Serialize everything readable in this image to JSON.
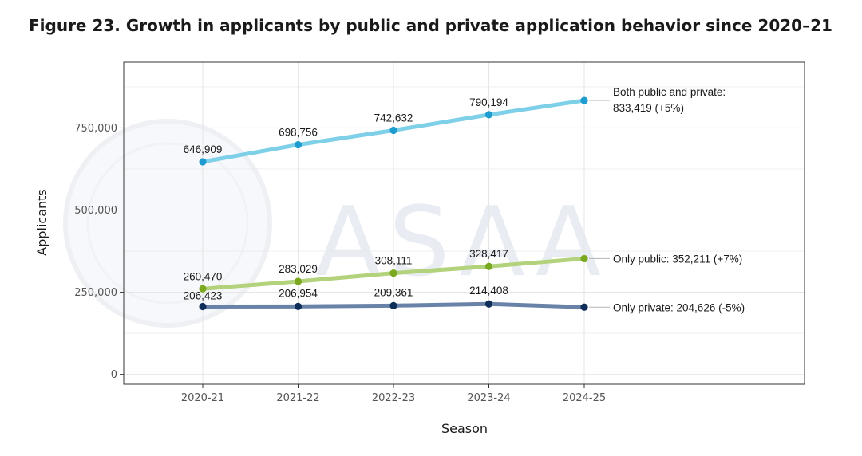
{
  "title": "Figure 23. Growth in applicants by public and private application behavior since 2020–21",
  "colors": {
    "both": "#7ecfe8",
    "both_point": "#1e9cd0",
    "public": "#b2d27c",
    "public_point": "#7aa81f",
    "private": "#6983a8",
    "private_point": "#0f2e5a",
    "grid": "#e6e6e6",
    "panel_border": "#333333"
  },
  "watermark": "ASAA",
  "chart_data": {
    "type": "line",
    "xlabel": "Season",
    "ylabel": "Applicants",
    "categories": [
      "2020-21",
      "2021-22",
      "2022-23",
      "2023-24",
      "2024-25"
    ],
    "ylim": [
      -30000,
      950000
    ],
    "yticks": [
      0,
      250000,
      500000,
      750000
    ],
    "ytick_labels": [
      "0",
      "250,000",
      "500,000",
      "750,000"
    ],
    "grid": true,
    "legend": "none",
    "series": [
      {
        "key": "both",
        "values": [
          646909,
          698756,
          742632,
          790194,
          833419
        ],
        "data_labels": [
          "646,909",
          "698,756",
          "742,632",
          "790,194"
        ],
        "end_label": [
          "Both public and private:",
          "833,419 (+5%)"
        ]
      },
      {
        "key": "public",
        "values": [
          260470,
          283029,
          308111,
          328417,
          352211
        ],
        "data_labels": [
          "260,470",
          "283,029",
          "308,111",
          "328,417"
        ],
        "end_label": [
          "Only public: 352,211 (+7%)"
        ]
      },
      {
        "key": "private",
        "values": [
          206423,
          206954,
          209361,
          214408,
          204626
        ],
        "data_labels": [
          "206,423",
          "206,954",
          "209,361",
          "214,408"
        ],
        "end_label": [
          "Only private: 204,626 (-5%)"
        ]
      }
    ]
  }
}
